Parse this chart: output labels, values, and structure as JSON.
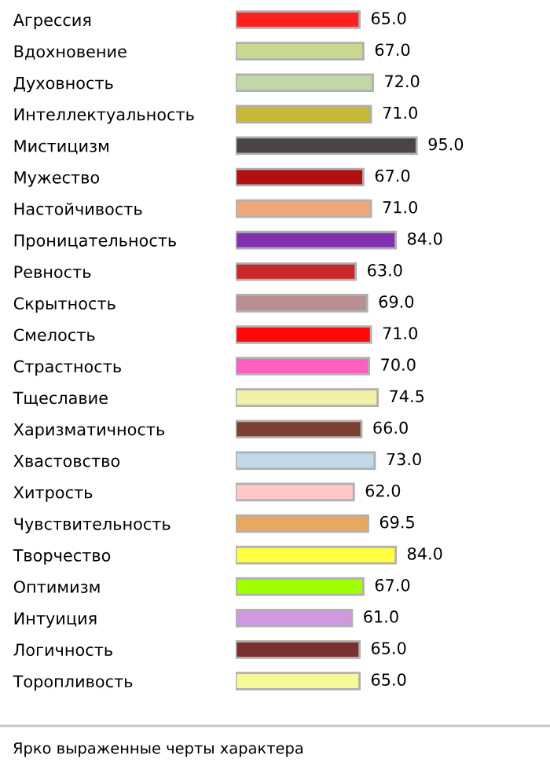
{
  "chart_data": {
    "type": "bar",
    "orientation": "horizontal",
    "categories": [
      "Агрессия",
      "Вдохновение",
      "Духовность",
      "Интеллектуальность",
      "Мистицизм",
      "Мужество",
      "Настойчивость",
      "Проницательность",
      "Ревность",
      "Скрытность",
      "Смелость",
      "Страстность",
      "Тщеславие",
      "Харизматичность",
      "Хвастовство",
      "Хитрость",
      "Чувствительность",
      "Творчество",
      "Оптимизм",
      "Интуиция",
      "Логичность",
      "Торопливость"
    ],
    "values": [
      65,
      67,
      72,
      71,
      95,
      67,
      71,
      84,
      63,
      69,
      71,
      70,
      74.5,
      66,
      73,
      62,
      69.5,
      84,
      67,
      61,
      65,
      65
    ],
    "value_labels": [
      "65.0",
      "67.0",
      "72.0",
      "71.0",
      "95.0",
      "67.0",
      "71.0",
      "84.0",
      "63.0",
      "69.0",
      "71.0",
      "70.0",
      "74.5",
      "66.0",
      "73.0",
      "62.0",
      "69.5",
      "84.0",
      "67.0",
      "61.0",
      "65.0",
      "65.0"
    ],
    "colors": [
      "#ff2020",
      "#c8d890",
      "#c0d8a8",
      "#c8b838",
      "#4a4448",
      "#b01010",
      "#f0a878",
      "#8030b0",
      "#c82828",
      "#b89090",
      "#ff0808",
      "#ff60c0",
      "#f0f0a8",
      "#7a4030",
      "#c0d8e8",
      "#ffc8c8",
      "#e8a860",
      "#ffff40",
      "#a0ff00",
      "#d098e0",
      "#7a3030",
      "#f8f898"
    ],
    "annotations": [
      "Ярко выраженные черты характера"
    ]
  }
}
